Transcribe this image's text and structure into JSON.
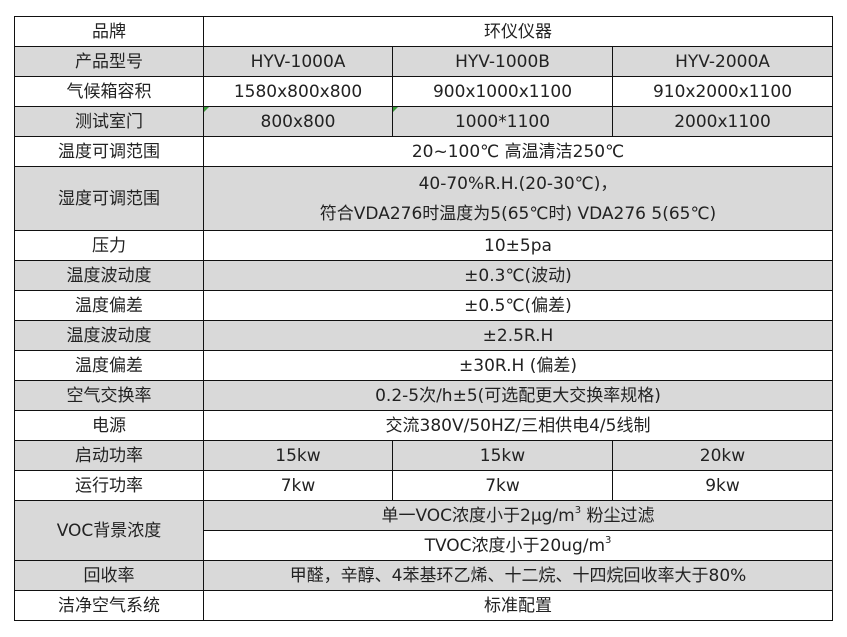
{
  "rows": {
    "brand": {
      "label": "品牌",
      "value": "环仪仪器"
    },
    "model": {
      "label": "产品型号",
      "values": [
        "HYV-1000A",
        "HYV-1000B",
        "HYV-2000A"
      ]
    },
    "volume": {
      "label": "气候箱容积",
      "values": [
        "1580x800x800",
        "900x1000x1100",
        "910x2000x1100"
      ]
    },
    "door": {
      "label": "测试室门",
      "values": [
        "800x800",
        "1000*1100",
        "2000x1100"
      ]
    },
    "temp_range": {
      "label": "温度可调范围",
      "value": "20~100℃ 高温清洁250℃"
    },
    "humidity_range": {
      "label": "湿度可调范围",
      "line1": "40-70%R.H.(20-30℃)，",
      "line2": "符合VDA276时温度为5(65℃时) VDA276 5(65℃)"
    },
    "pressure": {
      "label": "压力",
      "value": "10±5pa"
    },
    "temp_fluct": {
      "label": "温度波动度",
      "value": "±0.3℃(波动)"
    },
    "temp_dev": {
      "label": "温度偏差",
      "value": "±0.5℃(偏差)"
    },
    "hum_fluct": {
      "label": "温度波动度",
      "value": "±2.5R.H"
    },
    "hum_dev": {
      "label": "温度偏差",
      "value": "±30R.H (偏差)"
    },
    "air_exchange": {
      "label": "空气交换率",
      "value": "0.2-5次/h±5(可选配更大交换率规格)"
    },
    "power": {
      "label": "电源",
      "value": "交流380V/50HZ/三相供电4/5线制"
    },
    "start_power": {
      "label": "启动功率",
      "values": [
        "15kw",
        "15kw",
        "20kw"
      ]
    },
    "run_power": {
      "label": "运行功率",
      "values": [
        "7kw",
        "7kw",
        "9kw"
      ]
    },
    "voc": {
      "label": "VOC背景浓度",
      "line1": "单一VOC浓度小于2μg/m",
      "line1_sup": "3",
      "line1_tail": " 粉尘过滤",
      "line2": "TVOC浓度小于20ug/m",
      "line2_sup": "3"
    },
    "recovery": {
      "label": "回收率",
      "value": "甲醛，辛醇、4苯基环乙烯、十二烷、十四烷回收率大于80%"
    },
    "clean_air": {
      "label": "洁净空气系统",
      "value": "标准配置"
    }
  },
  "colors": {
    "shaded_row": "#d9d9d9",
    "border": "#111111"
  }
}
